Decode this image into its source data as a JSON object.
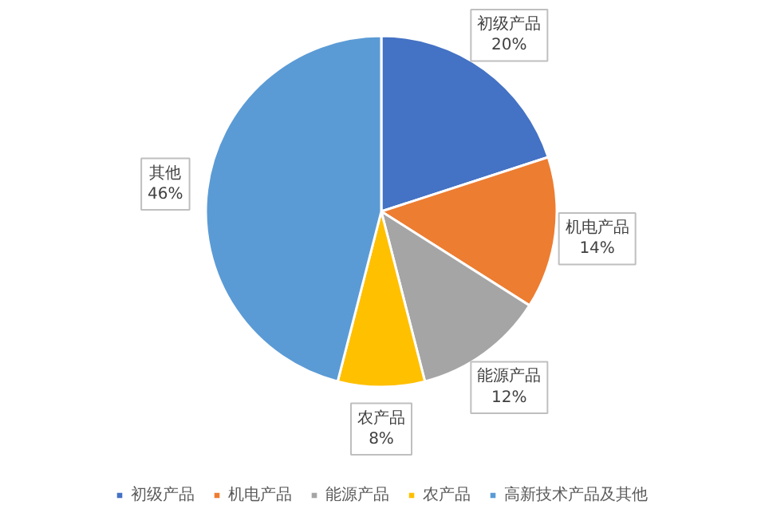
{
  "chart_data": {
    "type": "pie",
    "categories": [
      "初级产品",
      "机电产品",
      "能源产品",
      "农产品",
      "高新技术产品及其他"
    ],
    "values": [
      20,
      14,
      12,
      8,
      46
    ],
    "colors": [
      "#4472c4",
      "#ed7d31",
      "#a5a5a5",
      "#ffc000",
      "#5b9bd5"
    ],
    "value_labels": [
      "初级产品\n20%",
      "机电产品\n14%",
      "能源产品\n12%",
      "农产品\n8%",
      "其他\n46%"
    ],
    "legend": "bottom"
  }
}
